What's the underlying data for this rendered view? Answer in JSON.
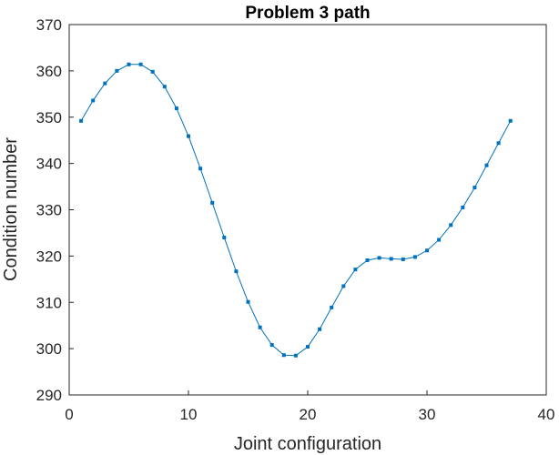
{
  "chart_data": {
    "type": "line",
    "title": "Problem 3 path",
    "xlabel": "Joint configuration",
    "ylabel": "Condition number",
    "xlim": [
      0,
      40
    ],
    "ylim": [
      290,
      370
    ],
    "xticks": [
      0,
      10,
      20,
      30,
      40
    ],
    "yticks": [
      290,
      300,
      310,
      320,
      330,
      340,
      350,
      360,
      370
    ],
    "grid": false,
    "marker": "square",
    "color": "#0072BD",
    "series": [
      {
        "x": [
          1,
          2,
          3,
          4,
          5,
          6,
          7,
          8,
          9,
          10,
          11,
          12,
          13,
          14,
          15,
          16,
          17,
          18,
          19,
          20,
          21,
          22,
          23,
          24,
          25,
          26,
          27,
          28,
          29,
          30,
          31,
          32,
          33,
          34,
          35,
          36,
          37
        ],
        "values": [
          349.2,
          353.6,
          357.3,
          360.0,
          361.4,
          361.4,
          359.8,
          356.6,
          351.9,
          345.9,
          338.9,
          331.5,
          324.0,
          316.7,
          310.1,
          304.6,
          300.8,
          298.6,
          298.5,
          300.4,
          304.2,
          308.9,
          313.5,
          317.1,
          319.1,
          319.6,
          319.4,
          319.3,
          319.8,
          321.2,
          323.5,
          326.7,
          330.5,
          334.8,
          339.6,
          344.4,
          349.2
        ]
      }
    ]
  }
}
